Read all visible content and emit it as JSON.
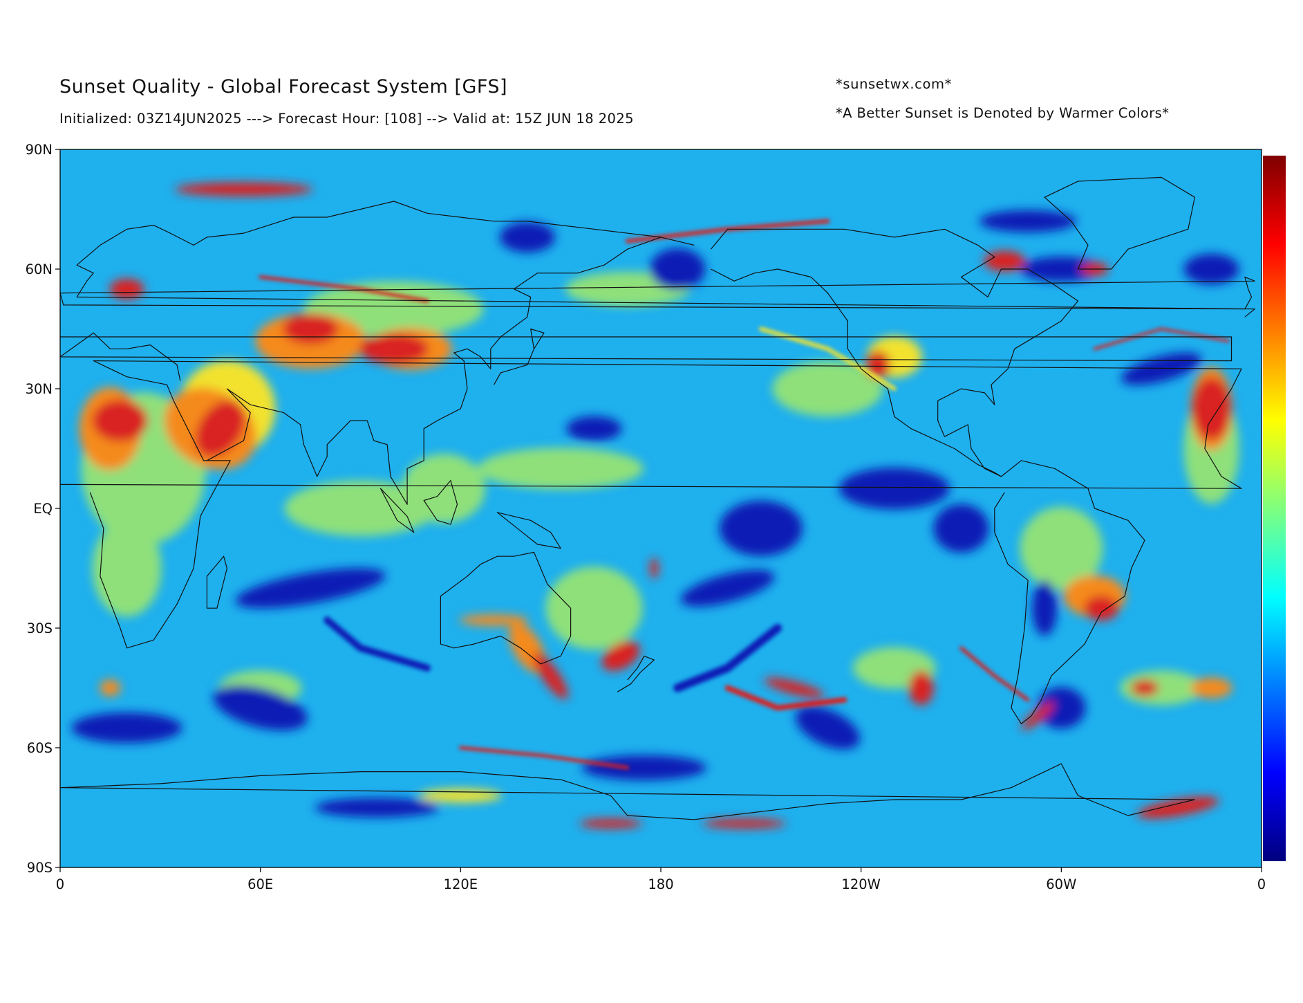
{
  "header": {
    "title": "Sunset Quality - Global Forecast System [GFS]",
    "subtitle": "Initialized: 03Z14JUN2025 ---> Forecast Hour: [108] --> Valid at: 15Z JUN 18 2025",
    "site": "*sunsetwx.com*",
    "note": "*A Better Sunset is Denoted by Warmer Colors*"
  },
  "map": {
    "projection": "plate-carree",
    "central_longitude": 180,
    "x_ticks": [
      "0",
      "60E",
      "120E",
      "180",
      "120W",
      "60W",
      "0"
    ],
    "y_ticks": [
      "90N",
      "60N",
      "30N",
      "EQ",
      "30S",
      "60S",
      "90S"
    ],
    "colorbar": {
      "colormap": "jet",
      "colors": [
        "#00007f",
        "#0000ff",
        "#007fff",
        "#00ffff",
        "#7fff7f",
        "#ffff00",
        "#ff7f00",
        "#ff0000",
        "#7f0000"
      ]
    },
    "palette": {
      "background_field": "#1fb0ee",
      "poor": "#0a1fb5",
      "fair": "#8fe07a",
      "good": "#f2e22e",
      "very_good": "#f58a1f",
      "excellent": "#d92020"
    }
  }
}
